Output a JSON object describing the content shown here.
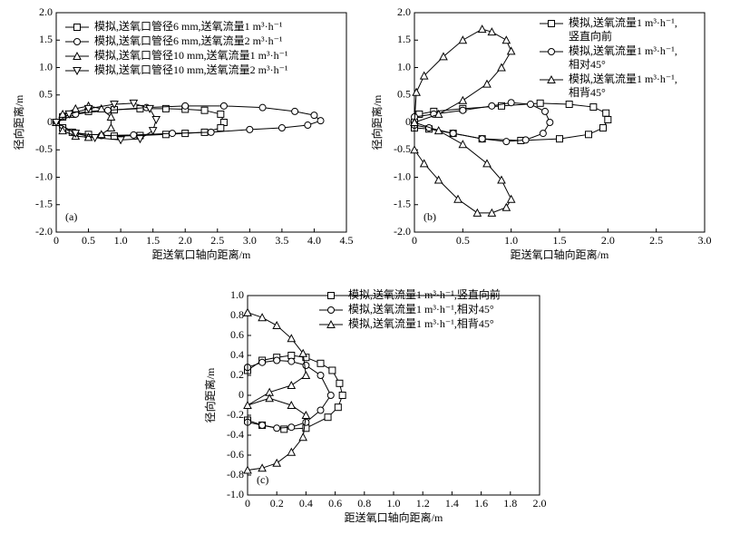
{
  "chart_data": [
    {
      "type": "line",
      "panel_label": "(a)",
      "x_label": "距送氧口轴向距离/m",
      "y_label": "径向距离/m",
      "xlim": [
        0,
        4.5
      ],
      "ylim": [
        -2.0,
        2.0
      ],
      "xticks": [
        0,
        {
          "value": 0.5,
          "label": "0.5"
        },
        {
          "value": 1,
          "label": "1.0"
        },
        {
          "value": 1.5,
          "label": "1.5"
        },
        {
          "value": 2,
          "label": "2.0"
        },
        {
          "value": 2.5,
          "label": "2.5"
        },
        {
          "value": 3,
          "label": "3.0"
        },
        {
          "value": 3.5,
          "label": "3.5"
        },
        {
          "value": 4,
          "label": "4.0"
        },
        {
          "value": 4.5,
          "label": "4.5"
        }
      ],
      "yticks": [
        {
          "value": -2,
          "label": "-2.0"
        },
        {
          "value": -1.5,
          "label": "-1.5"
        },
        {
          "value": -1,
          "label": "-1.0"
        },
        {
          "value": -0.5,
          "label": "-0.5"
        },
        0,
        {
          "value": 0.5,
          "label": "0.5"
        },
        {
          "value": 1,
          "label": "1.0"
        },
        {
          "value": 1.5,
          "label": "1.5"
        },
        {
          "value": 2,
          "label": "2.0"
        }
      ],
      "series": [
        {
          "name": [
            "模拟,送氧口管径6 mm,送氧流量1 m³·h⁻¹"
          ],
          "marker": "square",
          "color": "#000000",
          "x": [
            0,
            0.1,
            0.25,
            0.5,
            0.9,
            1.3,
            1.7,
            2.0,
            2.3,
            2.55,
            2.6,
            2.55,
            2.3,
            2.0,
            1.7,
            1.3,
            0.9,
            0.5,
            0.25,
            0.1,
            0
          ],
          "values": [
            0,
            0.1,
            0.15,
            0.2,
            0.23,
            0.25,
            0.25,
            0.24,
            0.22,
            0.15,
            0,
            -0.1,
            -0.18,
            -0.2,
            -0.22,
            -0.24,
            -0.25,
            -0.22,
            -0.18,
            -0.1,
            0
          ]
        },
        {
          "name": [
            "模拟,送氧口管径6 mm,送氧流量2 m³·h⁻¹"
          ],
          "marker": "circle",
          "color": "#000000",
          "x": [
            0,
            0.3,
            0.8,
            1.4,
            2.0,
            2.6,
            3.2,
            3.7,
            4.0,
            4.1,
            3.9,
            3.5,
            3.0,
            2.4,
            1.8,
            1.2,
            0.7,
            0.3,
            0
          ],
          "values": [
            0,
            0.15,
            0.22,
            0.27,
            0.3,
            0.3,
            0.27,
            0.2,
            0.13,
            0.03,
            -0.05,
            -0.1,
            -0.13,
            -0.18,
            -0.2,
            -0.23,
            -0.24,
            -0.2,
            0
          ]
        },
        {
          "name": [
            "模拟,送氧口管径10 mm,送氧流量1 m³·h⁻¹"
          ],
          "marker": "triangle",
          "color": "#000000",
          "x": [
            0,
            0.1,
            0.3,
            0.5,
            0.7,
            0.85,
            0.85,
            0.7,
            0.5,
            0.3,
            0.1,
            0
          ],
          "values": [
            0,
            0.15,
            0.25,
            0.3,
            0.25,
            0.1,
            -0.1,
            -0.22,
            -0.27,
            -0.25,
            -0.15,
            0
          ]
        },
        {
          "name": [
            "模拟,送氧口管径10 mm,送氧流量2 m³·h⁻¹"
          ],
          "marker": "triangle-down",
          "color": "#000000",
          "x": [
            0,
            0.2,
            0.5,
            0.9,
            1.2,
            1.45,
            1.55,
            1.5,
            1.3,
            1.0,
            0.6,
            0.3,
            0
          ],
          "values": [
            0,
            0.15,
            0.25,
            0.33,
            0.35,
            0.25,
            0.05,
            -0.15,
            -0.3,
            -0.32,
            -0.28,
            -0.2,
            0
          ]
        }
      ]
    },
    {
      "type": "line",
      "panel_label": "(b)",
      "x_label": "距送氧口轴向距离/m",
      "y_label": "径向距离/m",
      "xlim": [
        0,
        3.0
      ],
      "ylim": [
        -2.0,
        2.0
      ],
      "xticks": [
        0,
        {
          "value": 0.5,
          "label": "0.5"
        },
        {
          "value": 1,
          "label": "1.0"
        },
        {
          "value": 1.5,
          "label": "1.5"
        },
        {
          "value": 2,
          "label": "2.0"
        },
        {
          "value": 2.5,
          "label": "2.5"
        },
        {
          "value": 3,
          "label": "3.0"
        }
      ],
      "yticks": [
        {
          "value": -2,
          "label": "-2.0"
        },
        {
          "value": -1.5,
          "label": "-1.5"
        },
        {
          "value": -1,
          "label": "-1.0"
        },
        {
          "value": -0.5,
          "label": "-0.5"
        },
        0,
        {
          "value": 0.5,
          "label": "0.5"
        },
        {
          "value": 1,
          "label": "1.0"
        },
        {
          "value": 1.5,
          "label": "1.5"
        },
        {
          "value": 2,
          "label": "2.0"
        }
      ],
      "series": [
        {
          "name": [
            "模拟,送氧流量1 m³·h⁻¹,",
            "竖直向前"
          ],
          "marker": "square",
          "color": "#000000",
          "x": [
            0,
            0.05,
            0.2,
            0.5,
            0.9,
            1.3,
            1.6,
            1.85,
            1.98,
            2.0,
            1.95,
            1.8,
            1.5,
            1.1,
            0.7,
            0.4,
            0.15,
            0
          ],
          "values": [
            0,
            0.15,
            0.2,
            0.25,
            0.3,
            0.35,
            0.33,
            0.28,
            0.17,
            0.05,
            -0.1,
            -0.22,
            -0.3,
            -0.33,
            -0.3,
            -0.2,
            -0.12,
            -0.1
          ]
        },
        {
          "name": [
            "模拟,送氧流量1 m³·h⁻¹,",
            "相对45°"
          ],
          "marker": "circle",
          "color": "#000000",
          "x": [
            0,
            0.2,
            0.5,
            0.8,
            1.0,
            1.2,
            1.35,
            1.4,
            1.33,
            1.15,
            0.95,
            0.7,
            0.4,
            0.15,
            0
          ],
          "values": [
            0.1,
            0.15,
            0.22,
            0.3,
            0.36,
            0.33,
            0.2,
            0,
            -0.2,
            -0.32,
            -0.35,
            -0.3,
            -0.2,
            -0.1,
            -0.05
          ]
        },
        {
          "name": [
            "模拟,送氧流量1 m³·h⁻¹,",
            "相背45°"
          ],
          "marker": "triangle",
          "color": "#000000",
          "x": [
            0,
            0.02,
            0.1,
            0.3,
            0.5,
            0.7,
            0.8,
            0.95,
            1.0,
            0.9,
            0.75,
            0.5,
            0.25,
            0,
            0.25,
            0.5,
            0.75,
            0.9,
            1.0,
            0.95,
            0.8,
            0.65,
            0.45,
            0.25,
            0.1,
            0,
            0
          ],
          "values": [
            0,
            0.55,
            0.85,
            1.2,
            1.5,
            1.7,
            1.65,
            1.5,
            1.3,
            1.0,
            0.7,
            0.4,
            0.15,
            0,
            -0.15,
            -0.4,
            -0.75,
            -1.05,
            -1.4,
            -1.55,
            -1.65,
            -1.65,
            -1.4,
            -1.05,
            -0.75,
            -0.5,
            0
          ]
        }
      ]
    },
    {
      "type": "line",
      "panel_label": "(c)",
      "x_label": "距送氧口轴向距离/m",
      "y_label": "径向距离/m",
      "xlim": [
        0,
        2.0
      ],
      "ylim": [
        -1.0,
        1.0
      ],
      "xticks": [
        0,
        0.2,
        0.4,
        0.6,
        0.8,
        {
          "value": 1,
          "label": "1.0"
        },
        1.2,
        1.4,
        1.6,
        1.8,
        {
          "value": 2,
          "label": "2.0"
        }
      ],
      "yticks": [
        {
          "value": -1,
          "label": "-1.0"
        },
        -0.8,
        -0.6,
        -0.4,
        -0.2,
        0,
        0.2,
        0.4,
        0.6,
        0.8,
        {
          "value": 1,
          "label": "1.0"
        }
      ],
      "series": [
        {
          "name": [
            "模拟,送氧流量1 m³·h⁻¹,竖直向前"
          ],
          "marker": "square",
          "color": "#000000",
          "x": [
            0,
            0.1,
            0.2,
            0.3,
            0.4,
            0.5,
            0.58,
            0.63,
            0.65,
            0.62,
            0.55,
            0.4,
            0.25,
            0.1,
            0,
            0
          ],
          "values": [
            0.25,
            0.35,
            0.38,
            0.4,
            0.38,
            0.32,
            0.25,
            0.12,
            0,
            -0.12,
            -0.22,
            -0.33,
            -0.34,
            -0.3,
            -0.25,
            0.25
          ]
        },
        {
          "name": [
            "模拟,送氧流量1 m³·h⁻¹,相对45°"
          ],
          "marker": "circle",
          "color": "#000000",
          "x": [
            0,
            0.1,
            0.2,
            0.3,
            0.4,
            0.5,
            0.57,
            0.5,
            0.4,
            0.3,
            0.2,
            0.1,
            0,
            0
          ],
          "values": [
            0.28,
            0.33,
            0.35,
            0.34,
            0.3,
            0.2,
            0,
            -0.15,
            -0.27,
            -0.32,
            -0.33,
            -0.3,
            -0.27,
            0.28
          ]
        },
        {
          "name": [
            "模拟,送氧流量1 m³·h⁻¹,相背45°"
          ],
          "marker": "triangle",
          "color": "#000000",
          "x": [
            0,
            0.1,
            0.2,
            0.3,
            0.38,
            0.4,
            0.3,
            0.15,
            0,
            0.15,
            0.3,
            0.4,
            0.38,
            0.3,
            0.2,
            0.1,
            0,
            0
          ],
          "values": [
            0.83,
            0.78,
            0.7,
            0.57,
            0.42,
            0.2,
            0.1,
            0.03,
            -0.1,
            -0.03,
            -0.1,
            -0.2,
            -0.42,
            -0.57,
            -0.68,
            -0.73,
            -0.75,
            0.83
          ]
        }
      ]
    }
  ]
}
